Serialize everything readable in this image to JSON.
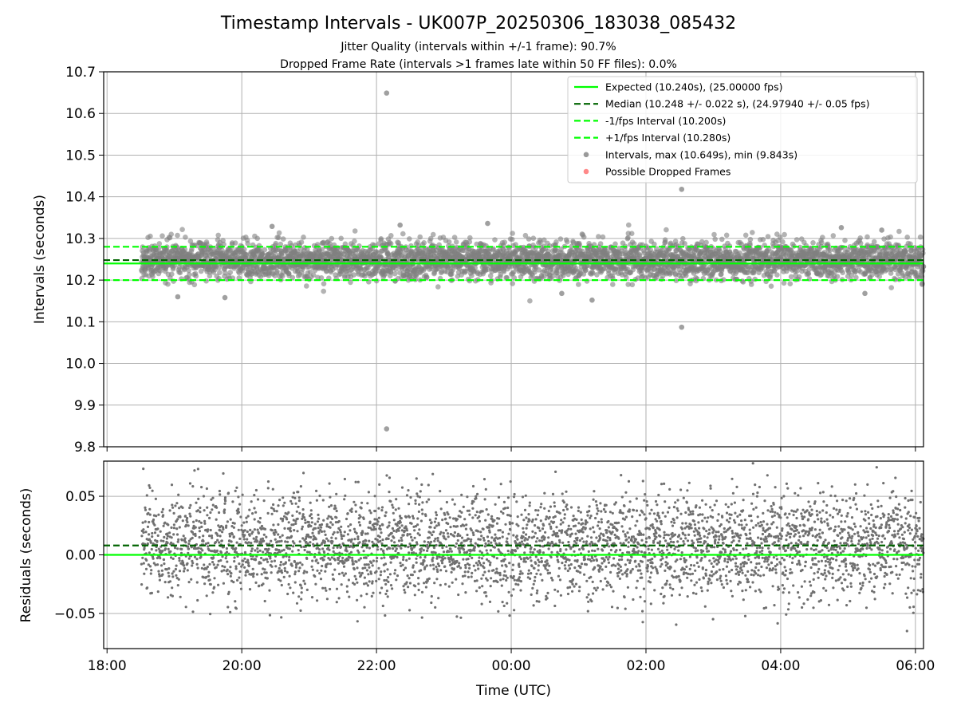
{
  "header": {
    "title": "Timestamp Intervals - UK007P_20250306_183038_085432",
    "subtitle_1": "Jitter Quality (intervals within +/-1 frame): 90.7%",
    "subtitle_2": "Dropped Frame Rate (intervals >1 frames late within 50 FF files): 0.0%"
  },
  "chart_data": [
    {
      "type": "scatter",
      "panel": "intervals",
      "ylabel": "Intervals (seconds)",
      "ylim": [
        9.8,
        10.7
      ],
      "yticks": [
        "10.7",
        "10.6",
        "10.5",
        "10.4",
        "10.3",
        "10.2",
        "10.1",
        "10.0",
        "9.9",
        "9.8"
      ],
      "ytick_values": [
        10.7,
        10.6,
        10.5,
        10.4,
        10.3,
        10.2,
        10.1,
        10.0,
        9.9,
        9.8
      ],
      "grid": true,
      "legend_position": "top-right",
      "reference_lines": [
        {
          "name": "Expected (10.240s), (25.00000 fps)",
          "y": 10.24,
          "style": "solid",
          "color": "#00ff00"
        },
        {
          "name": "Median (10.248 +/- 0.022 s), (24.97940 +/- 0.05 fps)",
          "y": 10.248,
          "style": "dashed",
          "color": "#006400"
        },
        {
          "name": "-1/fps Interval (10.200s)",
          "y": 10.2,
          "style": "dashed",
          "color": "#00ff00"
        },
        {
          "name": "+1/fps Interval (10.280s)",
          "y": 10.28,
          "style": "dashed",
          "color": "#00ff00"
        }
      ],
      "series": [
        {
          "name": "Intervals, max (10.649s), min (9.843s)",
          "color": "#808080",
          "x_range_hours": [
            18.51,
            30.12
          ],
          "median": 10.248,
          "std": 0.022,
          "count": 4080,
          "outliers": [
            {
              "x": 22.15,
              "y": 10.649
            },
            {
              "x": 22.15,
              "y": 9.843
            },
            {
              "x": 26.53,
              "y": 10.418
            },
            {
              "x": 26.53,
              "y": 10.087
            },
            {
              "x": 19.05,
              "y": 10.16
            },
            {
              "x": 19.75,
              "y": 10.158
            },
            {
              "x": 25.2,
              "y": 10.152
            },
            {
              "x": 24.75,
              "y": 10.168
            },
            {
              "x": 22.35,
              "y": 10.332
            },
            {
              "x": 23.65,
              "y": 10.336
            },
            {
              "x": 20.45,
              "y": 10.329
            },
            {
              "x": 28.9,
              "y": 10.326
            },
            {
              "x": 29.5,
              "y": 10.32
            },
            {
              "x": 29.25,
              "y": 10.168
            }
          ]
        },
        {
          "name": "Possible Dropped Frames",
          "color": "#ff6b6b",
          "count": 0
        }
      ]
    },
    {
      "type": "scatter",
      "panel": "residuals",
      "xlabel": "Time (UTC)",
      "ylabel": "Residuals (seconds)",
      "xlim_hours": [
        17.95,
        30.12
      ],
      "xticks": [
        "18:00",
        "20:00",
        "22:00",
        "00:00",
        "02:00",
        "04:00",
        "06:00"
      ],
      "xtick_values": [
        18,
        20,
        22,
        24,
        26,
        28,
        30
      ],
      "ylim": [
        -0.08,
        0.08
      ],
      "yticks": [
        "0.05",
        "0.00",
        "−0.05"
      ],
      "ytick_values": [
        0.05,
        0.0,
        -0.05
      ],
      "grid": true,
      "reference_lines": [
        {
          "y": 0.0,
          "style": "solid",
          "color": "#00ff00"
        },
        {
          "y": 0.008,
          "style": "dashed",
          "color": "#006400"
        }
      ],
      "series": [
        {
          "color": "#707070",
          "x_range_hours": [
            18.51,
            30.12
          ],
          "mean": 0.008,
          "std": 0.022,
          "count": 4080
        }
      ]
    }
  ]
}
